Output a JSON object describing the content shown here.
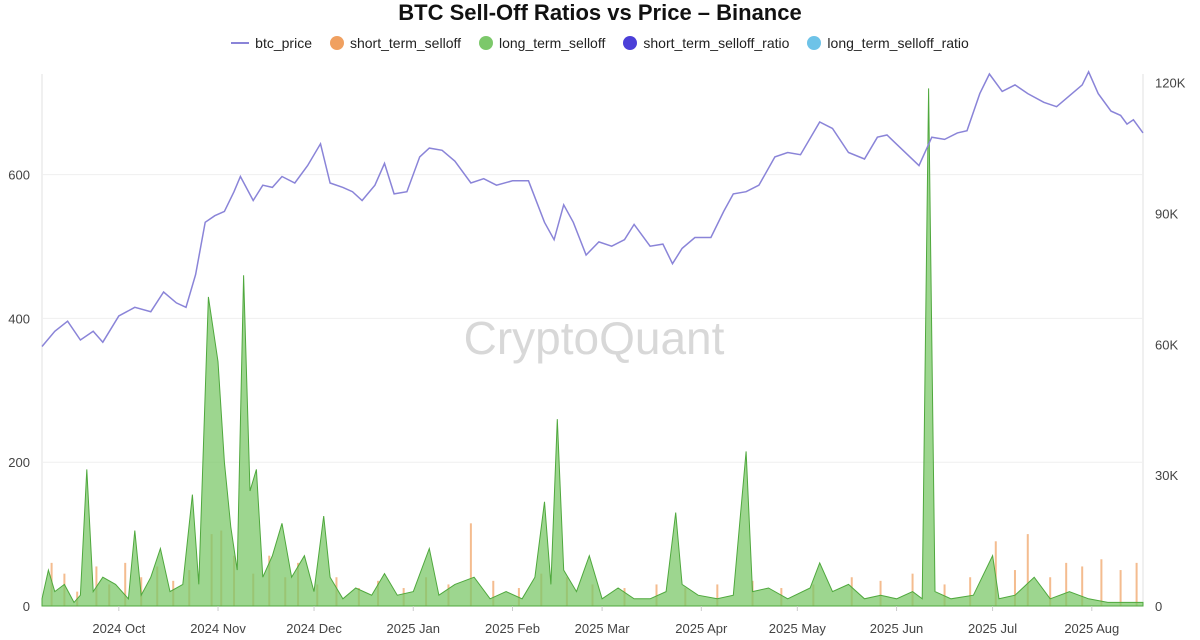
{
  "title": "BTC Sell-Off Ratios vs Price – Binance",
  "watermark": "CryptoQuant",
  "legend": [
    {
      "name": "btc_price",
      "color": "#8a84d8",
      "shape": "line"
    },
    {
      "name": "short_term_selloff",
      "color": "#f0a060",
      "shape": "dot"
    },
    {
      "name": "long_term_selloff",
      "color": "#7cc86a",
      "shape": "dot"
    },
    {
      "name": "short_term_selloff_ratio",
      "color": "#4b3fd8",
      "shape": "dot"
    },
    {
      "name": "long_term_selloff_ratio",
      "color": "#6ec3e8",
      "shape": "dot"
    }
  ],
  "chart_data": {
    "type": "line",
    "x_labels": [
      "2024 Oct",
      "2024 Nov",
      "2024 Dec",
      "2025 Jan",
      "2025 Feb",
      "2025 Mar",
      "2025 Apr",
      "2025 May",
      "2025 Jun",
      "2025 Jul",
      "2025 Aug"
    ],
    "x_range": [
      "2024-09-21",
      "2025-08-31"
    ],
    "left_axis": {
      "ticks": [
        "0",
        "200",
        "400",
        "600"
      ],
      "ylim": [
        0,
        740
      ]
    },
    "right_axis": {
      "ticks": [
        "0",
        "30K",
        "60K",
        "90K",
        "120K"
      ],
      "ylim": [
        0,
        122000
      ]
    },
    "grid": true,
    "series": [
      {
        "name": "btc_price",
        "axis": "right",
        "points": [
          [
            "2024-09-21",
            59500
          ],
          [
            "2024-09-25",
            63000
          ],
          [
            "2024-09-29",
            65300
          ],
          [
            "2024-10-03",
            61000
          ],
          [
            "2024-10-07",
            63000
          ],
          [
            "2024-10-10",
            60500
          ],
          [
            "2024-10-15",
            66500
          ],
          [
            "2024-10-20",
            68500
          ],
          [
            "2024-10-25",
            67500
          ],
          [
            "2024-10-29",
            72000
          ],
          [
            "2024-11-02",
            69500
          ],
          [
            "2024-11-05",
            68500
          ],
          [
            "2024-11-08",
            76000
          ],
          [
            "2024-11-11",
            88000
          ],
          [
            "2024-11-14",
            89500
          ],
          [
            "2024-11-17",
            90500
          ],
          [
            "2024-11-20",
            95000
          ],
          [
            "2024-11-22",
            98500
          ],
          [
            "2024-11-26",
            93000
          ],
          [
            "2024-11-29",
            96500
          ],
          [
            "2024-12-02",
            96000
          ],
          [
            "2024-12-05",
            98500
          ],
          [
            "2024-12-09",
            97000
          ],
          [
            "2024-12-13",
            101000
          ],
          [
            "2024-12-17",
            106000
          ],
          [
            "2024-12-20",
            97000
          ],
          [
            "2024-12-24",
            96000
          ],
          [
            "2024-12-27",
            95000
          ],
          [
            "2024-12-30",
            93000
          ],
          [
            "2025-01-03",
            96500
          ],
          [
            "2025-01-06",
            101500
          ],
          [
            "2025-01-09",
            94500
          ],
          [
            "2025-01-13",
            95000
          ],
          [
            "2025-01-17",
            103000
          ],
          [
            "2025-01-20",
            105000
          ],
          [
            "2025-01-24",
            104500
          ],
          [
            "2025-01-28",
            102000
          ],
          [
            "2025-02-02",
            97000
          ],
          [
            "2025-02-06",
            98000
          ],
          [
            "2025-02-10",
            96500
          ],
          [
            "2025-02-15",
            97500
          ],
          [
            "2025-02-20",
            97500
          ],
          [
            "2025-02-25",
            88000
          ],
          [
            "2025-02-28",
            84000
          ],
          [
            "2025-03-03",
            92000
          ],
          [
            "2025-03-06",
            88000
          ],
          [
            "2025-03-10",
            80500
          ],
          [
            "2025-03-14",
            83500
          ],
          [
            "2025-03-18",
            82500
          ],
          [
            "2025-03-22",
            84000
          ],
          [
            "2025-03-25",
            87500
          ],
          [
            "2025-03-30",
            82500
          ],
          [
            "2025-04-03",
            83000
          ],
          [
            "2025-04-06",
            78500
          ],
          [
            "2025-04-09",
            82000
          ],
          [
            "2025-04-13",
            84500
          ],
          [
            "2025-04-18",
            84500
          ],
          [
            "2025-04-22",
            90500
          ],
          [
            "2025-04-25",
            94500
          ],
          [
            "2025-04-29",
            95000
          ],
          [
            "2025-05-03",
            96500
          ],
          [
            "2025-05-08",
            103000
          ],
          [
            "2025-05-12",
            104000
          ],
          [
            "2025-05-16",
            103500
          ],
          [
            "2025-05-22",
            111000
          ],
          [
            "2025-05-26",
            109500
          ],
          [
            "2025-05-31",
            104000
          ],
          [
            "2025-06-05",
            102500
          ],
          [
            "2025-06-09",
            107500
          ],
          [
            "2025-06-12",
            108000
          ],
          [
            "2025-06-17",
            104500
          ],
          [
            "2025-06-22",
            101000
          ],
          [
            "2025-06-26",
            107500
          ],
          [
            "2025-06-30",
            107000
          ],
          [
            "2025-07-04",
            108500
          ],
          [
            "2025-07-07",
            109000
          ],
          [
            "2025-07-11",
            117500
          ],
          [
            "2025-07-14",
            122000
          ],
          [
            "2025-07-18",
            118000
          ],
          [
            "2025-07-22",
            119500
          ],
          [
            "2025-07-26",
            117500
          ],
          [
            "2025-07-31",
            115500
          ],
          [
            "2025-08-04",
            114500
          ],
          [
            "2025-08-08",
            117000
          ],
          [
            "2025-08-12",
            119500
          ],
          [
            "2025-08-14",
            122500
          ],
          [
            "2025-08-17",
            117500
          ],
          [
            "2025-08-21",
            113500
          ],
          [
            "2025-08-24",
            112500
          ],
          [
            "2025-08-26",
            110500
          ],
          [
            "2025-08-28",
            111500
          ],
          [
            "2025-08-31",
            108500
          ]
        ]
      },
      {
        "name": "long_term_selloff",
        "axis": "left",
        "points": [
          [
            "2024-09-21",
            10
          ],
          [
            "2024-09-23",
            50
          ],
          [
            "2024-09-25",
            20
          ],
          [
            "2024-09-28",
            30
          ],
          [
            "2024-10-01",
            5
          ],
          [
            "2024-10-03",
            15
          ],
          [
            "2024-10-05",
            190
          ],
          [
            "2024-10-07",
            20
          ],
          [
            "2024-10-10",
            40
          ],
          [
            "2024-10-14",
            30
          ],
          [
            "2024-10-18",
            10
          ],
          [
            "2024-10-20",
            105
          ],
          [
            "2024-10-22",
            15
          ],
          [
            "2024-10-25",
            40
          ],
          [
            "2024-10-28",
            80
          ],
          [
            "2024-10-31",
            20
          ],
          [
            "2024-11-04",
            30
          ],
          [
            "2024-11-07",
            155
          ],
          [
            "2024-11-09",
            30
          ],
          [
            "2024-11-12",
            430
          ],
          [
            "2024-11-15",
            340
          ],
          [
            "2024-11-17",
            200
          ],
          [
            "2024-11-19",
            110
          ],
          [
            "2024-11-21",
            50
          ],
          [
            "2024-11-23",
            460
          ],
          [
            "2024-11-25",
            160
          ],
          [
            "2024-11-27",
            190
          ],
          [
            "2024-11-29",
            40
          ],
          [
            "2024-12-02",
            70
          ],
          [
            "2024-12-05",
            115
          ],
          [
            "2024-12-08",
            40
          ],
          [
            "2024-12-12",
            70
          ],
          [
            "2024-12-15",
            20
          ],
          [
            "2024-12-18",
            125
          ],
          [
            "2024-12-20",
            40
          ],
          [
            "2024-12-24",
            10
          ],
          [
            "2024-12-28",
            25
          ],
          [
            "2025-01-02",
            15
          ],
          [
            "2025-01-06",
            45
          ],
          [
            "2025-01-10",
            15
          ],
          [
            "2025-01-15",
            20
          ],
          [
            "2025-01-20",
            80
          ],
          [
            "2025-01-23",
            15
          ],
          [
            "2025-01-28",
            30
          ],
          [
            "2025-02-03",
            40
          ],
          [
            "2025-02-08",
            10
          ],
          [
            "2025-02-13",
            20
          ],
          [
            "2025-02-18",
            10
          ],
          [
            "2025-02-22",
            40
          ],
          [
            "2025-02-25",
            145
          ],
          [
            "2025-02-27",
            30
          ],
          [
            "2025-03-01",
            260
          ],
          [
            "2025-03-03",
            50
          ],
          [
            "2025-03-07",
            20
          ],
          [
            "2025-03-11",
            70
          ],
          [
            "2025-03-15",
            10
          ],
          [
            "2025-03-20",
            25
          ],
          [
            "2025-03-25",
            10
          ],
          [
            "2025-03-30",
            10
          ],
          [
            "2025-04-04",
            20
          ],
          [
            "2025-04-07",
            130
          ],
          [
            "2025-04-09",
            30
          ],
          [
            "2025-04-14",
            15
          ],
          [
            "2025-04-20",
            10
          ],
          [
            "2025-04-25",
            15
          ],
          [
            "2025-04-29",
            215
          ],
          [
            "2025-05-01",
            20
          ],
          [
            "2025-05-06",
            25
          ],
          [
            "2025-05-12",
            10
          ],
          [
            "2025-05-19",
            25
          ],
          [
            "2025-05-22",
            60
          ],
          [
            "2025-05-26",
            20
          ],
          [
            "2025-05-31",
            30
          ],
          [
            "2025-06-05",
            10
          ],
          [
            "2025-06-10",
            15
          ],
          [
            "2025-06-15",
            10
          ],
          [
            "2025-06-20",
            20
          ],
          [
            "2025-06-23",
            10
          ],
          [
            "2025-06-25",
            720
          ],
          [
            "2025-06-27",
            20
          ],
          [
            "2025-07-02",
            10
          ],
          [
            "2025-07-09",
            15
          ],
          [
            "2025-07-15",
            70
          ],
          [
            "2025-07-17",
            10
          ],
          [
            "2025-07-22",
            15
          ],
          [
            "2025-07-28",
            40
          ],
          [
            "2025-08-02",
            10
          ],
          [
            "2025-08-08",
            20
          ],
          [
            "2025-08-14",
            10
          ],
          [
            "2025-08-20",
            5
          ],
          [
            "2025-08-26",
            5
          ],
          [
            "2025-08-31",
            5
          ]
        ]
      },
      {
        "name": "short_term_selloff",
        "axis": "left",
        "points": [
          [
            "2024-09-24",
            60
          ],
          [
            "2024-09-28",
            45
          ],
          [
            "2024-10-02",
            20
          ],
          [
            "2024-10-08",
            55
          ],
          [
            "2024-10-12",
            30
          ],
          [
            "2024-10-17",
            60
          ],
          [
            "2024-10-22",
            40
          ],
          [
            "2024-10-27",
            55
          ],
          [
            "2024-11-01",
            35
          ],
          [
            "2024-11-06",
            50
          ],
          [
            "2024-11-13",
            100
          ],
          [
            "2024-11-16",
            105
          ],
          [
            "2024-11-20",
            70
          ],
          [
            "2024-11-26",
            45
          ],
          [
            "2024-12-01",
            70
          ],
          [
            "2024-12-06",
            40
          ],
          [
            "2024-12-10",
            60
          ],
          [
            "2024-12-16",
            30
          ],
          [
            "2024-12-22",
            40
          ],
          [
            "2024-12-29",
            25
          ],
          [
            "2025-01-04",
            35
          ],
          [
            "2025-01-12",
            25
          ],
          [
            "2025-01-19",
            40
          ],
          [
            "2025-01-26",
            30
          ],
          [
            "2025-02-02",
            115
          ],
          [
            "2025-02-09",
            35
          ],
          [
            "2025-02-17",
            25
          ],
          [
            "2025-02-24",
            45
          ],
          [
            "2025-03-04",
            40
          ],
          [
            "2025-03-12",
            30
          ],
          [
            "2025-03-22",
            25
          ],
          [
            "2025-04-01",
            30
          ],
          [
            "2025-04-10",
            25
          ],
          [
            "2025-04-20",
            30
          ],
          [
            "2025-05-01",
            35
          ],
          [
            "2025-05-10",
            25
          ],
          [
            "2025-05-20",
            30
          ],
          [
            "2025-06-01",
            40
          ],
          [
            "2025-06-10",
            35
          ],
          [
            "2025-06-20",
            45
          ],
          [
            "2025-06-30",
            30
          ],
          [
            "2025-07-08",
            40
          ],
          [
            "2025-07-16",
            90
          ],
          [
            "2025-07-22",
            50
          ],
          [
            "2025-07-26",
            100
          ],
          [
            "2025-08-02",
            40
          ],
          [
            "2025-08-07",
            60
          ],
          [
            "2025-08-12",
            55
          ],
          [
            "2025-08-18",
            65
          ],
          [
            "2025-08-24",
            50
          ],
          [
            "2025-08-29",
            60
          ]
        ]
      }
    ]
  }
}
